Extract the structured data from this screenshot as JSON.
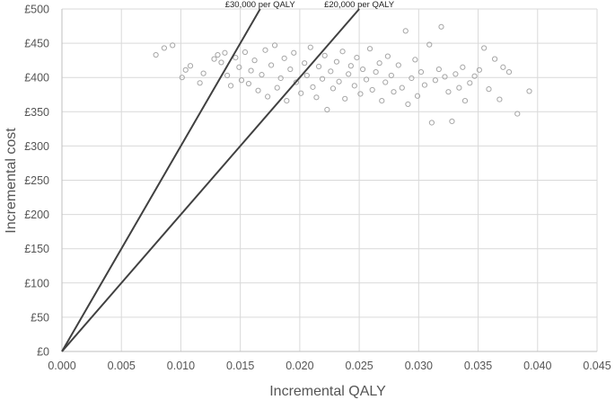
{
  "chart_data": {
    "type": "scatter",
    "title": "",
    "xlabel": "Incremental QALY",
    "ylabel": "Incremental cost",
    "xlim": [
      0,
      0.045
    ],
    "ylim": [
      0,
      500
    ],
    "x_ticks": [
      "0.000",
      "0.005",
      "0.010",
      "0.015",
      "0.020",
      "0.025",
      "0.030",
      "0.035",
      "0.040",
      "0.045"
    ],
    "y_ticks": [
      "£0",
      "£50",
      "£100",
      "£150",
      "£200",
      "£250",
      "£300",
      "£350",
      "£400",
      "£450",
      "£500"
    ],
    "grid": true,
    "marker": "hollow-circle",
    "marker_color": "#a6a6a6",
    "threshold_color": "#404040",
    "thresholds": [
      {
        "label": "£30,000 per QALY",
        "slope": 30000
      },
      {
        "label": "£20,000 per QALY",
        "slope": 20000
      }
    ],
    "points": [
      [
        0.0079,
        433
      ],
      [
        0.0086,
        443
      ],
      [
        0.0093,
        447
      ],
      [
        0.0101,
        400
      ],
      [
        0.0104,
        411
      ],
      [
        0.0108,
        417
      ],
      [
        0.0116,
        392
      ],
      [
        0.0119,
        406
      ],
      [
        0.0128,
        427
      ],
      [
        0.0131,
        433
      ],
      [
        0.0134,
        422
      ],
      [
        0.0137,
        436
      ],
      [
        0.0139,
        403
      ],
      [
        0.0142,
        388
      ],
      [
        0.0146,
        429
      ],
      [
        0.0149,
        415
      ],
      [
        0.0151,
        396
      ],
      [
        0.0154,
        437
      ],
      [
        0.0157,
        391
      ],
      [
        0.0159,
        410
      ],
      [
        0.0162,
        425
      ],
      [
        0.0165,
        381
      ],
      [
        0.0168,
        404
      ],
      [
        0.0171,
        440
      ],
      [
        0.0173,
        372
      ],
      [
        0.0176,
        418
      ],
      [
        0.0179,
        447
      ],
      [
        0.0181,
        385
      ],
      [
        0.0184,
        399
      ],
      [
        0.0187,
        428
      ],
      [
        0.0189,
        366
      ],
      [
        0.0192,
        412
      ],
      [
        0.0195,
        436
      ],
      [
        0.0197,
        393
      ],
      [
        0.0201,
        377
      ],
      [
        0.0204,
        421
      ],
      [
        0.0206,
        403
      ],
      [
        0.0209,
        444
      ],
      [
        0.0211,
        386
      ],
      [
        0.0214,
        371
      ],
      [
        0.0216,
        416
      ],
      [
        0.0219,
        398
      ],
      [
        0.0221,
        432
      ],
      [
        0.0223,
        353
      ],
      [
        0.0226,
        409
      ],
      [
        0.0228,
        384
      ],
      [
        0.0231,
        423
      ],
      [
        0.0233,
        394
      ],
      [
        0.0236,
        438
      ],
      [
        0.0238,
        369
      ],
      [
        0.0241,
        405
      ],
      [
        0.0243,
        417
      ],
      [
        0.0246,
        388
      ],
      [
        0.0248,
        429
      ],
      [
        0.0251,
        376
      ],
      [
        0.0253,
        412
      ],
      [
        0.0256,
        397
      ],
      [
        0.0259,
        442
      ],
      [
        0.0261,
        382
      ],
      [
        0.0264,
        408
      ],
      [
        0.0267,
        421
      ],
      [
        0.0269,
        366
      ],
      [
        0.0272,
        393
      ],
      [
        0.0274,
        431
      ],
      [
        0.0277,
        403
      ],
      [
        0.0279,
        379
      ],
      [
        0.0283,
        418
      ],
      [
        0.0286,
        385
      ],
      [
        0.0289,
        468
      ],
      [
        0.0291,
        361
      ],
      [
        0.0294,
        399
      ],
      [
        0.0297,
        426
      ],
      [
        0.0299,
        373
      ],
      [
        0.0302,
        408
      ],
      [
        0.0305,
        389
      ],
      [
        0.0309,
        448
      ],
      [
        0.0311,
        334
      ],
      [
        0.0314,
        396
      ],
      [
        0.0317,
        412
      ],
      [
        0.0319,
        474
      ],
      [
        0.0322,
        401
      ],
      [
        0.0325,
        379
      ],
      [
        0.0328,
        336
      ],
      [
        0.0331,
        405
      ],
      [
        0.0334,
        385
      ],
      [
        0.0337,
        415
      ],
      [
        0.0339,
        366
      ],
      [
        0.0343,
        392
      ],
      [
        0.0347,
        402
      ],
      [
        0.0351,
        411
      ],
      [
        0.0355,
        443
      ],
      [
        0.0359,
        383
      ],
      [
        0.0364,
        427
      ],
      [
        0.0368,
        368
      ],
      [
        0.0371,
        415
      ],
      [
        0.0376,
        408
      ],
      [
        0.0383,
        347
      ],
      [
        0.0393,
        380
      ]
    ]
  }
}
